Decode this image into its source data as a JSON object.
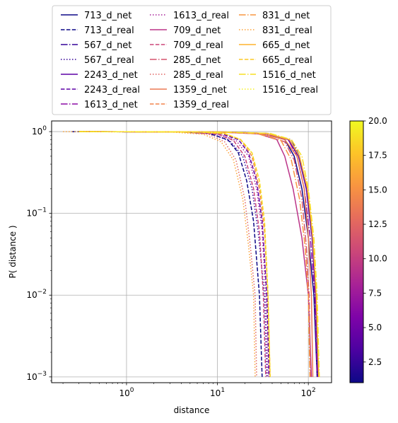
{
  "chart_data": {
    "type": "line",
    "xlabel": "distance",
    "ylabel": "P( distance )",
    "x_scale": "log",
    "y_scale": "log",
    "xlim": [
      0.15,
      180
    ],
    "ylim": [
      0.00085,
      1.35
    ],
    "grid": true,
    "legend_placement": "top",
    "x_ticks": [
      {
        "value": 1,
        "base": "10",
        "exp": "0"
      },
      {
        "value": 10,
        "base": "10",
        "exp": "1"
      },
      {
        "value": 100,
        "base": "10",
        "exp": "2"
      }
    ],
    "y_ticks": [
      {
        "value": 0.001,
        "base": "10",
        "exp": "−3"
      },
      {
        "value": 0.01,
        "base": "10",
        "exp": "−2"
      },
      {
        "value": 0.1,
        "base": "10",
        "exp": "−1"
      },
      {
        "value": 1,
        "base": "10",
        "exp": "0"
      }
    ],
    "colorbar": {
      "min": 1,
      "max": 20,
      "ticks": [
        "2.5",
        "5.0",
        "7.5",
        "10.0",
        "12.5",
        "15.0",
        "17.5",
        "20.0"
      ],
      "tick_values": [
        2.5,
        5.0,
        7.5,
        10.0,
        12.5,
        15.0,
        17.5,
        20.0
      ],
      "colormap": "plasma"
    },
    "series": [
      {
        "name": "713_d_net",
        "color": "#0d0887",
        "dash": "solid",
        "points": [
          [
            0.3,
            1
          ],
          [
            10,
            0.99
          ],
          [
            30,
            0.95
          ],
          [
            55,
            0.8
          ],
          [
            70,
            0.5
          ],
          [
            85,
            0.2
          ],
          [
            100,
            0.05
          ],
          [
            115,
            0.01
          ],
          [
            125,
            0.001
          ]
        ]
      },
      {
        "name": "713_d_real",
        "color": "#0d0887",
        "dash": "dashed",
        "points": [
          [
            0.25,
            1
          ],
          [
            4,
            0.99
          ],
          [
            8,
            0.95
          ],
          [
            13,
            0.8
          ],
          [
            17,
            0.55
          ],
          [
            21,
            0.25
          ],
          [
            25,
            0.08
          ],
          [
            29,
            0.01
          ],
          [
            31,
            0.001
          ]
        ]
      },
      {
        "name": "567_d_net",
        "color": "#350498",
        "dash": "dashdot",
        "points": [
          [
            0.3,
            1
          ],
          [
            12,
            0.99
          ],
          [
            35,
            0.95
          ],
          [
            65,
            0.8
          ],
          [
            80,
            0.5
          ],
          [
            95,
            0.2
          ],
          [
            110,
            0.05
          ],
          [
            120,
            0.01
          ],
          [
            130,
            0.001
          ]
        ]
      },
      {
        "name": "567_d_real",
        "color": "#350498",
        "dash": "dotted",
        "points": [
          [
            0.3,
            1
          ],
          [
            4,
            0.99
          ],
          [
            9,
            0.93
          ],
          [
            14,
            0.75
          ],
          [
            19,
            0.5
          ],
          [
            24,
            0.2
          ],
          [
            28,
            0.06
          ],
          [
            33,
            0.01
          ],
          [
            35,
            0.001
          ]
        ]
      },
      {
        "name": "2243_d_net",
        "color": "#5d01a6",
        "dash": "solid",
        "points": [
          [
            0.3,
            1
          ],
          [
            12,
            0.99
          ],
          [
            35,
            0.95
          ],
          [
            60,
            0.8
          ],
          [
            78,
            0.5
          ],
          [
            95,
            0.2
          ],
          [
            110,
            0.05
          ],
          [
            120,
            0.01
          ],
          [
            128,
            0.001
          ]
        ]
      },
      {
        "name": "2243_d_real",
        "color": "#5d01a6",
        "dash": "dashed",
        "points": [
          [
            0.3,
            1
          ],
          [
            5,
            0.99
          ],
          [
            11,
            0.94
          ],
          [
            17,
            0.8
          ],
          [
            22,
            0.55
          ],
          [
            27,
            0.25
          ],
          [
            31,
            0.08
          ],
          [
            35,
            0.01
          ],
          [
            37,
            0.001
          ]
        ]
      },
      {
        "name": "1613_d_net",
        "color": "#8b0aa5",
        "dash": "dashdot",
        "points": [
          [
            0.3,
            1
          ],
          [
            12,
            0.99
          ],
          [
            33,
            0.95
          ],
          [
            60,
            0.8
          ],
          [
            75,
            0.5
          ],
          [
            90,
            0.2
          ],
          [
            105,
            0.05
          ],
          [
            118,
            0.01
          ],
          [
            125,
            0.001
          ]
        ]
      },
      {
        "name": "1613_d_real",
        "color": "#a62098",
        "dash": "dotted",
        "points": [
          [
            0.3,
            1
          ],
          [
            5,
            0.99
          ],
          [
            10,
            0.94
          ],
          [
            16,
            0.78
          ],
          [
            22,
            0.5
          ],
          [
            27,
            0.2
          ],
          [
            31,
            0.06
          ],
          [
            34,
            0.01
          ],
          [
            36,
            0.001
          ]
        ]
      },
      {
        "name": "709_d_net",
        "color": "#bb3488",
        "dash": "solid",
        "points": [
          [
            0.3,
            1
          ],
          [
            10,
            0.99
          ],
          [
            28,
            0.94
          ],
          [
            45,
            0.8
          ],
          [
            55,
            0.5
          ],
          [
            68,
            0.2
          ],
          [
            85,
            0.05
          ],
          [
            100,
            0.01
          ],
          [
            108,
            0.001
          ]
        ]
      },
      {
        "name": "709_d_real",
        "color": "#cb4679",
        "dash": "dashed",
        "points": [
          [
            0.3,
            1
          ],
          [
            5,
            0.99
          ],
          [
            10,
            0.93
          ],
          [
            15,
            0.78
          ],
          [
            20,
            0.5
          ],
          [
            25,
            0.2
          ],
          [
            29,
            0.06
          ],
          [
            32,
            0.01
          ],
          [
            34,
            0.001
          ]
        ]
      },
      {
        "name": "285_d_net",
        "color": "#d5546e",
        "dash": "dashdot",
        "points": [
          [
            0.3,
            1
          ],
          [
            10,
            0.99
          ],
          [
            30,
            0.94
          ],
          [
            55,
            0.75
          ],
          [
            70,
            0.45
          ],
          [
            85,
            0.15
          ],
          [
            95,
            0.04
          ],
          [
            102,
            0.01
          ],
          [
            106,
            0.001
          ]
        ]
      },
      {
        "name": "285_d_real",
        "color": "#e16462",
        "dash": "dotted",
        "points": [
          [
            0.3,
            1
          ],
          [
            4,
            0.99
          ],
          [
            8,
            0.93
          ],
          [
            12,
            0.75
          ],
          [
            16,
            0.45
          ],
          [
            20,
            0.15
          ],
          [
            23,
            0.04
          ],
          [
            26,
            0.01
          ],
          [
            27,
            0.001
          ]
        ]
      },
      {
        "name": "1359_d_net",
        "color": "#ec7853",
        "dash": "solid",
        "points": [
          [
            0.3,
            1
          ],
          [
            10,
            0.99
          ],
          [
            30,
            0.95
          ],
          [
            55,
            0.8
          ],
          [
            75,
            0.5
          ],
          [
            90,
            0.2
          ],
          [
            100,
            0.05
          ],
          [
            108,
            0.01
          ],
          [
            112,
            0.001
          ]
        ]
      },
      {
        "name": "1359_d_real",
        "color": "#f2844b",
        "dash": "dashed",
        "points": [
          [
            0.3,
            1
          ],
          [
            6,
            0.99
          ],
          [
            12,
            0.94
          ],
          [
            18,
            0.8
          ],
          [
            24,
            0.5
          ],
          [
            29,
            0.2
          ],
          [
            33,
            0.06
          ],
          [
            36,
            0.01
          ],
          [
            38,
            0.001
          ]
        ]
      },
      {
        "name": "831_d_net",
        "color": "#f89540",
        "dash": "dashdot",
        "points": [
          [
            0.3,
            1
          ],
          [
            10,
            0.99
          ],
          [
            28,
            0.94
          ],
          [
            50,
            0.78
          ],
          [
            65,
            0.45
          ],
          [
            80,
            0.15
          ],
          [
            92,
            0.04
          ],
          [
            100,
            0.01
          ],
          [
            104,
            0.001
          ]
        ]
      },
      {
        "name": "831_d_real",
        "color": "#fba238",
        "dash": "dotted",
        "points": [
          [
            0.2,
            1
          ],
          [
            3,
            0.99
          ],
          [
            7,
            0.93
          ],
          [
            11,
            0.75
          ],
          [
            15,
            0.45
          ],
          [
            19,
            0.15
          ],
          [
            22,
            0.04
          ],
          [
            25,
            0.01
          ],
          [
            26,
            0.001
          ]
        ]
      },
      {
        "name": "665_d_net",
        "color": "#fdb42f",
        "dash": "solid",
        "points": [
          [
            0.3,
            1
          ],
          [
            12,
            0.99
          ],
          [
            35,
            0.95
          ],
          [
            62,
            0.8
          ],
          [
            80,
            0.5
          ],
          [
            98,
            0.2
          ],
          [
            112,
            0.05
          ],
          [
            122,
            0.01
          ],
          [
            130,
            0.001
          ]
        ]
      },
      {
        "name": "665_d_real",
        "color": "#fbc926",
        "dash": "dashed",
        "points": [
          [
            0.3,
            1
          ],
          [
            6,
            0.99
          ],
          [
            12,
            0.95
          ],
          [
            18,
            0.8
          ],
          [
            24,
            0.55
          ],
          [
            29,
            0.25
          ],
          [
            33,
            0.08
          ],
          [
            36,
            0.01
          ],
          [
            38,
            0.001
          ]
        ]
      },
      {
        "name": "1516_d_net",
        "color": "#f7df24",
        "dash": "dashdot",
        "points": [
          [
            0.3,
            1
          ],
          [
            12,
            0.99
          ],
          [
            38,
            0.95
          ],
          [
            65,
            0.8
          ],
          [
            85,
            0.5
          ],
          [
            100,
            0.2
          ],
          [
            115,
            0.05
          ],
          [
            125,
            0.01
          ],
          [
            132,
            0.001
          ]
        ]
      },
      {
        "name": "1516_d_real",
        "color": "#f5f121",
        "dash": "dotted",
        "points": [
          [
            0.3,
            1
          ],
          [
            6,
            0.99
          ],
          [
            12,
            0.95
          ],
          [
            18,
            0.8
          ],
          [
            24,
            0.55
          ],
          [
            29,
            0.25
          ],
          [
            33,
            0.08
          ],
          [
            36,
            0.01
          ],
          [
            38,
            0.001
          ]
        ]
      }
    ]
  }
}
